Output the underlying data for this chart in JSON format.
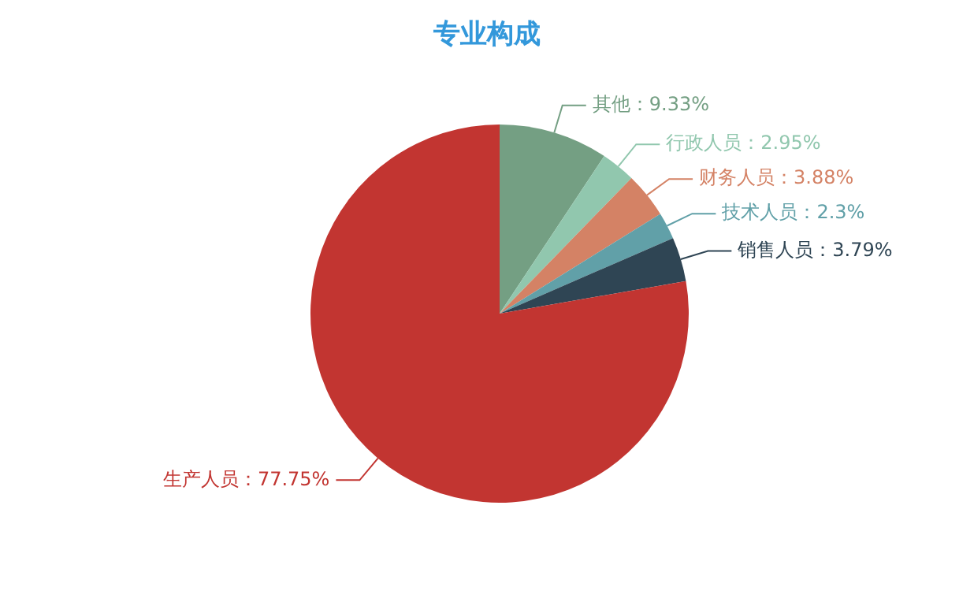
{
  "chart_data": {
    "type": "pie",
    "title": "专业构成",
    "categories": [
      "其他",
      "行政人员",
      "财务人员",
      "技术人员",
      "销售人员",
      "生产人员"
    ],
    "values": [
      9.33,
      2.95,
      3.88,
      2.3,
      3.79,
      77.75
    ],
    "colors": [
      "#749f83",
      "#91c7ae",
      "#d48265",
      "#61a0a8",
      "#2f4554",
      "#c23531"
    ],
    "value_labels": [
      "：9.33%",
      "：2.95%",
      "：3.88%",
      "：2.3%",
      "：3.79%",
      "：77.75%"
    ],
    "legend": false
  }
}
